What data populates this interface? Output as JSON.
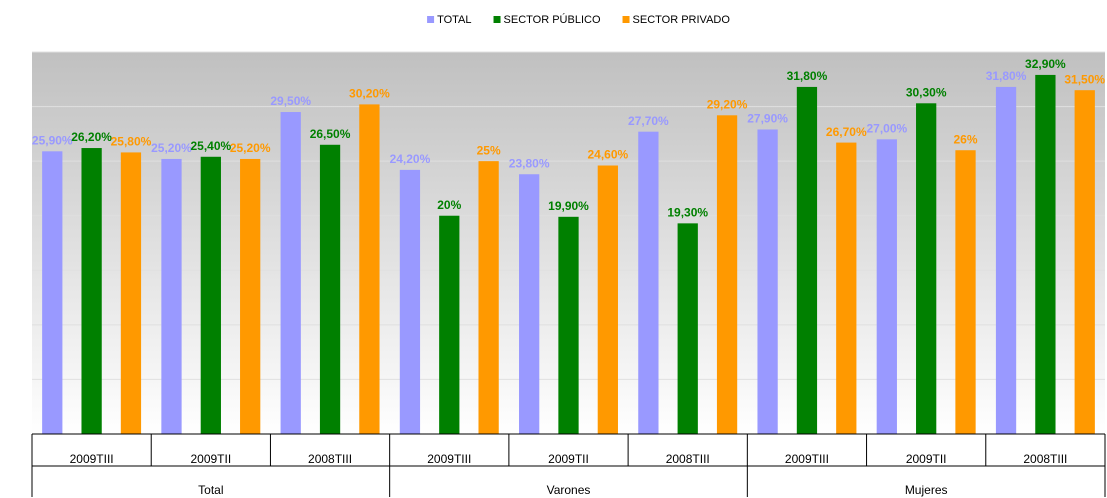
{
  "chart_data": {
    "type": "bar",
    "categories": [
      "2009TIII",
      "2009TII",
      "2008TIII",
      "2009TIII",
      "2009TII",
      "2008TIII",
      "2009TIII",
      "2009TII",
      "2008TIII"
    ],
    "groups": [
      "Total",
      "Varones",
      "Mujeres"
    ],
    "series": [
      {
        "name": "TOTAL",
        "color": "#9999ff",
        "values": [
          25.9,
          25.2,
          29.5,
          24.2,
          23.8,
          27.7,
          27.9,
          27.0,
          31.8
        ],
        "value_labels": [
          "25,90%",
          "25,20%",
          "29,50%",
          "24,20%",
          "23,80%",
          "27,70%",
          "27,90%",
          "27,00%",
          "31,80%"
        ]
      },
      {
        "name": "SECTOR PÚBLICO",
        "color": "#008000",
        "values": [
          26.2,
          25.4,
          26.5,
          20,
          19.9,
          19.3,
          31.8,
          30.3,
          32.9
        ],
        "value_labels": [
          "26,20%",
          "25,40%",
          "26,50%",
          "20%",
          "19,90%",
          "19,30%",
          "31,80%",
          "30,30%",
          "32,90%"
        ]
      },
      {
        "name": "SECTOR PRIVADO",
        "color": "#ff9900",
        "values": [
          25.8,
          25.2,
          30.2,
          25,
          24.6,
          29.2,
          26.7,
          26,
          31.5
        ],
        "value_labels": [
          "25,80%",
          "25,20%",
          "30,20%",
          "25%",
          "24,60%",
          "29,20%",
          "26,70%",
          "26%",
          "31,50%"
        ]
      }
    ],
    "ylim": [
      0,
      35
    ],
    "yticks": [
      0,
      5,
      10,
      15,
      20,
      25,
      30,
      35
    ],
    "grid": true,
    "legend": "top"
  }
}
